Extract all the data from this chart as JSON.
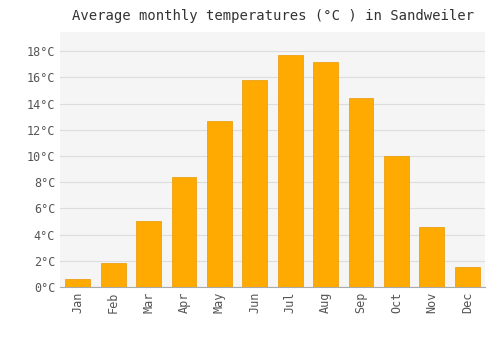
{
  "title": "Average monthly temperatures (°C ) in Sandweiler",
  "months": [
    "Jan",
    "Feb",
    "Mar",
    "Apr",
    "May",
    "Jun",
    "Jul",
    "Aug",
    "Sep",
    "Oct",
    "Nov",
    "Dec"
  ],
  "values": [
    0.6,
    1.8,
    5.0,
    8.4,
    12.7,
    15.8,
    17.7,
    17.2,
    14.4,
    10.0,
    4.6,
    1.5
  ],
  "bar_color": "#FFAA00",
  "bar_edge_color": "#E89800",
  "background_color": "#FFFFFF",
  "plot_bg_color": "#F5F5F5",
  "grid_color": "#DDDDDD",
  "ylim": [
    0,
    19.5
  ],
  "yticks": [
    0,
    2,
    4,
    6,
    8,
    10,
    12,
    14,
    16,
    18
  ],
  "ytick_labels": [
    "0°C",
    "2°C",
    "4°C",
    "6°C",
    "8°C",
    "10°C",
    "12°C",
    "14°C",
    "16°C",
    "18°C"
  ],
  "title_fontsize": 10,
  "tick_fontsize": 8.5,
  "font_family": "monospace"
}
